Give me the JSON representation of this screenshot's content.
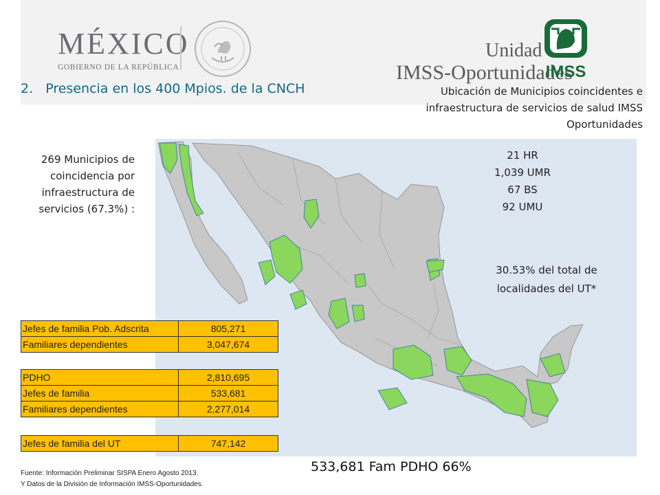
{
  "logos": {
    "mexico_word": "MÉXICO",
    "mexico_sub": "GOBIERNO DE LA REPÚBLICA",
    "unidad": "Unidad",
    "imss_oportunidades": "IMSS-Oportunidades",
    "imss": "IMSS"
  },
  "title": "2.   Presencia en los 400 Mpios. de la CNCH",
  "map_title": "Ubicación de Municipios coincidentes e infraestructura de servicios de salud IMSS Oportunidades",
  "municipios_text": "269 Municipios de coincidencia por infraestructura de servicios (67.3%) :",
  "infrastructure": [
    "21 HR",
    "1,039 UMR",
    "67  BS",
    "  92 UMU"
  ],
  "localidades_text": "30.53% del total de localidades del UT*",
  "table1": [
    {
      "label": "Jefes de  familia Pob. Adscrita",
      "value": "805,271"
    },
    {
      "label": "Familiares dependientes",
      "value": "3,047,674"
    }
  ],
  "table2": [
    {
      "label": "PDHO",
      "value": "2,810,695"
    },
    {
      "label": "Jefes de familia",
      "value": "533,681"
    },
    {
      "label": "Familiares dependientes",
      "value": "2,277,014"
    }
  ],
  "table3": [
    {
      "label": "Jefes de familia del UT",
      "value": "747,142"
    }
  ],
  "footnote": [
    "Fuente: Información Preliminar SISPA Enero Agosto 2013.",
    "Y Datos de la División de Información IMSS-Oportunidades."
  ],
  "bottom_stat": "533,681 Fam PDHO  66%",
  "colors": {
    "map_sea": "#dde7f2",
    "map_land": "#c8c8c8",
    "map_highlight": "#8bd65c",
    "table_fill": "#ffc000",
    "title_color": "#0e6a86",
    "imss_green": "#1a6b3a"
  }
}
